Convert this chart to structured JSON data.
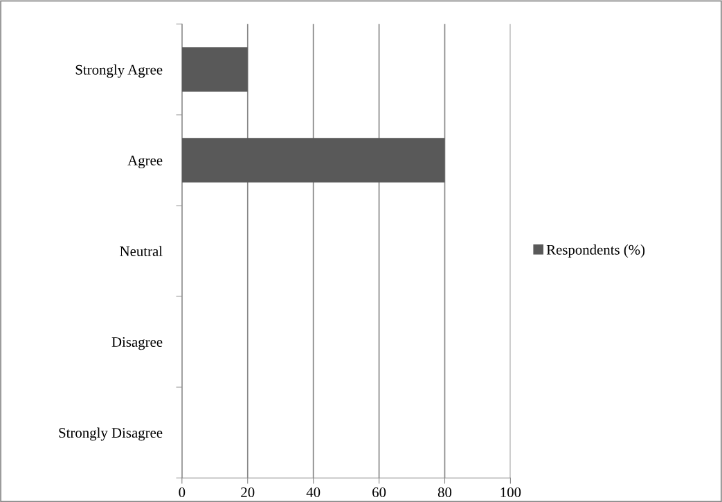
{
  "chart_data": {
    "type": "bar",
    "orientation": "horizontal",
    "categories": [
      "Strongly Agree",
      "Agree",
      "Neutral",
      "Disagree",
      "Strongly Disagree"
    ],
    "series": [
      {
        "name": "Respondents (%)",
        "color": "#595959",
        "values": [
          20,
          80,
          0,
          0,
          0
        ]
      }
    ],
    "xlim": [
      0,
      100
    ],
    "xticks": [
      0,
      20,
      40,
      60,
      80,
      100
    ],
    "grid": "x",
    "legend": "right"
  }
}
